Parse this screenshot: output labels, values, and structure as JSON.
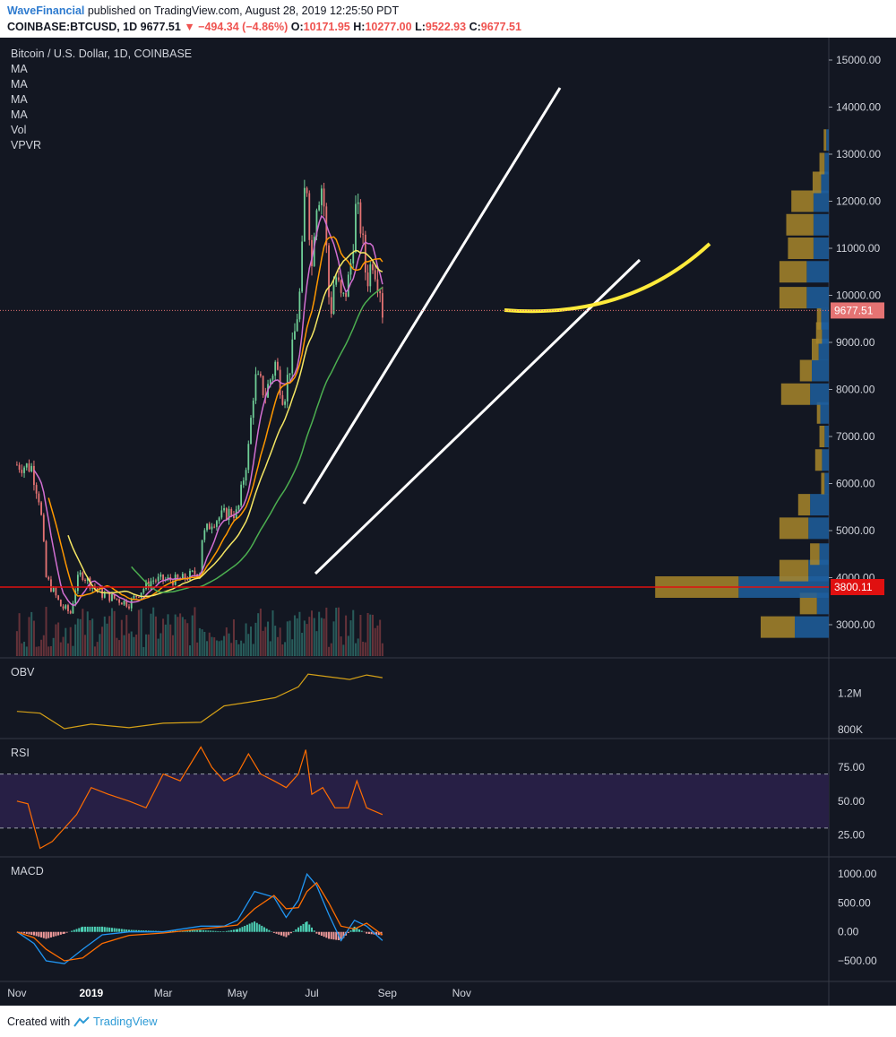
{
  "header": {
    "author": "WaveFinancial",
    "published": "published on TradingView.com, August 28, 2019 12:25:50 PDT",
    "symbol": "COINBASE:BTCUSD, 1D",
    "price": "9677.51",
    "change": "−494.34 (−4.86%)",
    "open_label": "O:",
    "open": "10171.95",
    "high_label": "H:",
    "high": "10277.00",
    "low_label": "L:",
    "low": "9522.93",
    "close_label": "C:",
    "close": "9677.51"
  },
  "legend": [
    "Bitcoin / U.S. Dollar, 1D, COINBASE",
    "MA",
    "MA",
    "MA",
    "MA",
    "Vol",
    "VPVR"
  ],
  "footer": {
    "created_with": "Created with",
    "brand": "TradingView"
  },
  "colors": {
    "background": "#131722",
    "grid": "#1e222d",
    "up": "#6fcf97",
    "down": "#e57373",
    "ma_fast": "#d16fd1",
    "ma_mid": "#ff9800",
    "ma_slow": "#f5e663",
    "ma_long": "#4caf50",
    "hline": "#e01010",
    "curve": "#ffeb3b",
    "trend": "#ffffff",
    "obv": "#d4a017",
    "rsi": "#ff6d00",
    "macd": "#2196f3",
    "signal": "#ff6d00",
    "rsi_band": "#271f45",
    "vp_up": "#1f5f9e",
    "vp_down": "#a8862a"
  },
  "chart_data": [
    {
      "type": "line",
      "name": "price",
      "title": "Bitcoin / U.S. Dollar, 1D, COINBASE",
      "x_ticks": [
        "Nov",
        "2019",
        "Mar",
        "May",
        "Jul",
        "Sep",
        "Nov"
      ],
      "y_ticks": [
        "15000.00",
        "14000.00",
        "13000.00",
        "12000.00",
        "11000.00",
        "10000.00",
        "9000.00",
        "8000.00",
        "7000.00",
        "6000.00",
        "5000.00",
        "4000.00",
        "3000.00"
      ],
      "ylim": [
        2300,
        15200
      ],
      "scale": "linear",
      "x": [
        "2018-11-01",
        "2018-11-13",
        "2018-11-20",
        "2018-11-25",
        "2018-12-07",
        "2018-12-15",
        "2018-12-20",
        "2018-12-24",
        "2019-01-01",
        "2019-01-10",
        "2019-02-01",
        "2019-02-08",
        "2019-02-20",
        "2019-03-15",
        "2019-04-01",
        "2019-04-02",
        "2019-04-10",
        "2019-04-25",
        "2019-05-01",
        "2019-05-11",
        "2019-05-13",
        "2019-05-16",
        "2019-05-20",
        "2019-05-24",
        "2019-06-01",
        "2019-06-08",
        "2019-06-15",
        "2019-06-22",
        "2019-06-26",
        "2019-07-01",
        "2019-07-04",
        "2019-07-10",
        "2019-07-16",
        "2019-07-20",
        "2019-07-26",
        "2019-08-01",
        "2019-08-06",
        "2019-08-10",
        "2019-08-15",
        "2019-08-20",
        "2019-08-26",
        "2019-08-28"
      ],
      "close": [
        6400,
        6350,
        5600,
        4000,
        3400,
        3250,
        3900,
        4100,
        3850,
        3650,
        3450,
        3650,
        3950,
        3950,
        4150,
        4850,
        5200,
        5400,
        5350,
        6900,
        7800,
        8200,
        8100,
        7900,
        8550,
        7800,
        8800,
        10200,
        12800,
        10600,
        12000,
        12400,
        9500,
        10500,
        9800,
        10400,
        11800,
        11500,
        10300,
        10800,
        10200,
        9677.51
      ],
      "annotations": {
        "last_price": "9677.51",
        "support": "3800.11",
        "support_value": 3800.11
      }
    },
    {
      "type": "bar",
      "name": "volume profile (VPVR)",
      "levels": [
        2950,
        3450,
        3800,
        4150,
        4500,
        5050,
        5550,
        6000,
        6500,
        7000,
        7500,
        7900,
        8400,
        8850,
        9200,
        9500,
        9950,
        10500,
        11000,
        11500,
        12000,
        12400,
        12800,
        13300
      ],
      "up_volume": [
        40,
        14,
        106,
        24,
        11,
        24,
        22,
        5,
        8,
        5,
        10,
        22,
        20,
        12,
        8,
        9,
        26,
        26,
        18,
        18,
        18,
        9,
        5,
        3
      ],
      "down_volume": [
        40,
        20,
        98,
        34,
        11,
        34,
        14,
        4,
        8,
        6,
        4,
        34,
        14,
        8,
        7,
        5,
        32,
        32,
        30,
        32,
        26,
        10,
        6,
        3
      ]
    },
    {
      "type": "line",
      "name": "OBV",
      "y_ticks": [
        "1.2M",
        "800K"
      ],
      "x": [
        "2018-11-01",
        "2018-11-20",
        "2018-12-10",
        "2019-01-01",
        "2019-02-01",
        "2019-03-01",
        "2019-04-01",
        "2019-04-20",
        "2019-05-10",
        "2019-06-01",
        "2019-06-20",
        "2019-06-28",
        "2019-07-15",
        "2019-08-01",
        "2019-08-15",
        "2019-08-28"
      ],
      "values": [
        1000,
        980,
        810,
        860,
        820,
        870,
        880,
        1060,
        1100,
        1150,
        1270,
        1410,
        1380,
        1350,
        1400,
        1370
      ]
    },
    {
      "type": "line",
      "name": "RSI",
      "y_ticks": [
        "75.00",
        "50.00",
        "25.00"
      ],
      "ylim": [
        10,
        95
      ],
      "band": [
        30,
        70
      ],
      "x": [
        "2018-11-01",
        "2018-11-10",
        "2018-11-20",
        "2018-11-30",
        "2018-12-10",
        "2018-12-20",
        "2019-01-01",
        "2019-01-15",
        "2019-02-01",
        "2019-02-15",
        "2019-03-01",
        "2019-03-15",
        "2019-04-01",
        "2019-04-10",
        "2019-04-20",
        "2019-05-01",
        "2019-05-10",
        "2019-05-20",
        "2019-05-31",
        "2019-06-10",
        "2019-06-20",
        "2019-06-26",
        "2019-07-01",
        "2019-07-10",
        "2019-07-20",
        "2019-07-31",
        "2019-08-07",
        "2019-08-15",
        "2019-08-28"
      ],
      "values": [
        50,
        48,
        15,
        20,
        30,
        40,
        60,
        55,
        50,
        45,
        70,
        65,
        90,
        75,
        65,
        70,
        85,
        70,
        65,
        60,
        70,
        88,
        55,
        60,
        45,
        45,
        65,
        45,
        40
      ]
    },
    {
      "type": "line",
      "name": "MACD",
      "y_ticks": [
        "1000.00",
        "500.00",
        "0.00",
        "−500.00"
      ],
      "ylim": [
        -800,
        1200
      ],
      "x": [
        "2018-11-01",
        "2018-11-15",
        "2018-11-25",
        "2018-12-10",
        "2018-12-25",
        "2019-01-10",
        "2019-02-01",
        "2019-03-01",
        "2019-04-01",
        "2019-04-20",
        "2019-05-01",
        "2019-05-15",
        "2019-05-31",
        "2019-06-10",
        "2019-06-20",
        "2019-06-27",
        "2019-07-05",
        "2019-07-15",
        "2019-07-25",
        "2019-08-05",
        "2019-08-15",
        "2019-08-28"
      ],
      "macd": [
        0,
        -200,
        -500,
        -550,
        -300,
        -50,
        0,
        0,
        100,
        100,
        200,
        700,
        600,
        250,
        550,
        1000,
        800,
        300,
        -150,
        200,
        100,
        -150
      ],
      "signal": [
        0,
        -100,
        -300,
        -500,
        -450,
        -200,
        -60,
        -20,
        50,
        90,
        120,
        400,
        630,
        400,
        420,
        700,
        850,
        500,
        100,
        50,
        150,
        -50
      ]
    }
  ]
}
